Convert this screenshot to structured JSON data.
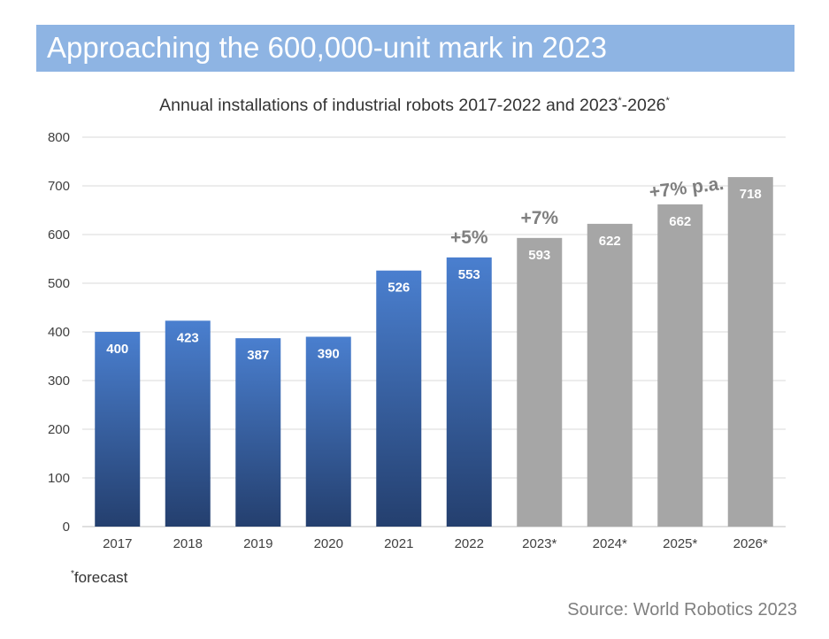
{
  "header": {
    "title": "Approaching the 600,000-unit mark in 2023"
  },
  "subtitle": {
    "main": "Annual installations of industrial robots 2017-2022 and 2023",
    "sup1": "*",
    "mid": "-2026",
    "sup2": "*"
  },
  "footnote": {
    "marker": "*",
    "text": "forecast"
  },
  "source": "Source: World Robotics 2023",
  "colors": {
    "actual_top": "#4a7fcf",
    "actual_bottom": "#243f6e",
    "forecast": "#a6a6a6",
    "growth_label": "#7f7f7f",
    "banner": "#8eb4e3"
  },
  "chart_data": {
    "type": "bar",
    "categories": [
      "2017",
      "2018",
      "2019",
      "2020",
      "2021",
      "2022",
      "2023*",
      "2024*",
      "2025*",
      "2026*"
    ],
    "values": [
      400,
      423,
      387,
      390,
      526,
      553,
      593,
      622,
      662,
      718
    ],
    "forecast_flags": [
      false,
      false,
      false,
      false,
      false,
      false,
      true,
      true,
      true,
      true
    ],
    "ylim": [
      0,
      800
    ],
    "yticks": [
      0,
      100,
      200,
      300,
      400,
      500,
      600,
      700,
      800
    ],
    "grid": true,
    "annotations": [
      {
        "category": "2022",
        "text": "+5%"
      },
      {
        "category": "2023*",
        "text": "+7%"
      },
      {
        "category": "2025*",
        "text": "+7% p.a."
      }
    ]
  }
}
